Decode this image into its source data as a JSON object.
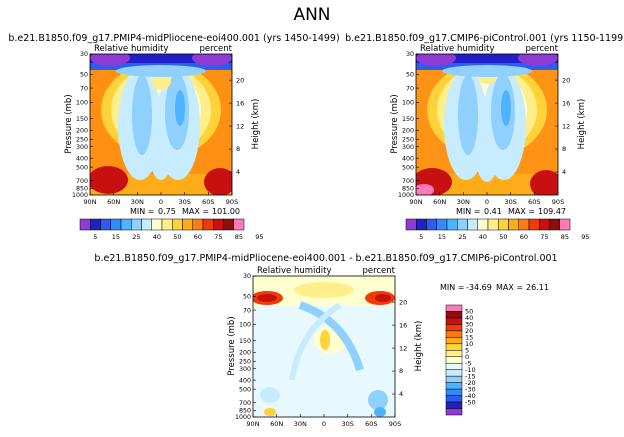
{
  "page_title": "ANN",
  "colors": {
    "pos_scale": [
      "#8d3bd4",
      "#2020c8",
      "#2c5cf0",
      "#2f8cff",
      "#4fb3ff",
      "#8fd0ff",
      "#c8ecff",
      "#ffffd0",
      "#ffef8a",
      "#ffd23a",
      "#ffac1a",
      "#ff7a10",
      "#f03a08",
      "#c81010",
      "#8a1010",
      "#ff7ab8"
    ],
    "diff_scale": [
      "#8d3bd4",
      "#2020c8",
      "#2c5cf0",
      "#2f8cff",
      "#4fb3ff",
      "#8fd0ff",
      "#c8ecff",
      "#e8f8ff",
      "#ffffd0",
      "#ffef8a",
      "#ffd23a",
      "#ffac1a",
      "#ff7a10",
      "#f03a08",
      "#c81010",
      "#8a1010",
      "#ff7ab8"
    ]
  },
  "chart_data": [
    {
      "type": "heatmap",
      "title": "b.e21.B1850.f09_g17.PMIP4-midPliocene-eoi400.001 (yrs 1450-1499)",
      "left_label": "Relative humidity",
      "right_label": "percent",
      "ylabel": "Pressure (mb)",
      "y2label": "Height (km)",
      "xticks": [
        "90N",
        "60N",
        "30N",
        "0",
        "30S",
        "60S",
        "90S"
      ],
      "yticks": [
        "1000",
        "850",
        "700",
        "500",
        "400",
        "300",
        "250",
        "200",
        "150",
        "100",
        "70",
        "50",
        "30"
      ],
      "y2ticks": [
        "4",
        "8",
        "12",
        "16",
        "20"
      ],
      "stats": {
        "min_label": "MIN =",
        "min": "0.75",
        "max_label": "MAX =",
        "max": "101.00"
      },
      "levels": [
        "5",
        "15",
        "25",
        "40",
        "50",
        "60",
        "75",
        "85",
        "95"
      ]
    },
    {
      "type": "heatmap",
      "title": "b.e21.B1850.f09_g17.CMIP6-piControl.001 (yrs 1150-1199)",
      "left_label": "Relative humidity",
      "right_label": "percent",
      "ylabel": "Pressure (mb)",
      "y2label": "Height (km)",
      "xticks": [
        "90N",
        "60N",
        "30N",
        "0",
        "30S",
        "60S",
        "90S"
      ],
      "yticks": [
        "1000",
        "850",
        "700",
        "500",
        "400",
        "300",
        "250",
        "200",
        "150",
        "100",
        "70",
        "50",
        "30"
      ],
      "y2ticks": [
        "4",
        "8",
        "12",
        "16",
        "20"
      ],
      "stats": {
        "min_label": "MIN =",
        "min": "0.41",
        "max_label": "MAX =",
        "max": "109.47"
      },
      "levels": [
        "5",
        "15",
        "25",
        "40",
        "50",
        "60",
        "75",
        "85",
        "95"
      ]
    },
    {
      "type": "heatmap",
      "title": "b.e21.B1850.f09_g17.PMIP4-midPliocene-eoi400.001 - b.e21.B1850.f09_g17.CMIP6-piControl.001",
      "left_label": "Relative humidity",
      "right_label": "percent",
      "ylabel": "Pressure (mb)",
      "y2label": "Height (km)",
      "xticks": [
        "90N",
        "60N",
        "30N",
        "0",
        "30S",
        "60S",
        "90S"
      ],
      "yticks": [
        "1000",
        "850",
        "700",
        "500",
        "400",
        "300",
        "250",
        "200",
        "150",
        "100",
        "70",
        "50",
        "30"
      ],
      "y2ticks": [
        "4",
        "8",
        "12",
        "16",
        "20"
      ],
      "stats": {
        "min_label": "MIN =",
        "min": "-34.69",
        "max_label": "MAX =",
        "max": "26.11"
      },
      "levels": [
        "50",
        "40",
        "30",
        "20",
        "15",
        "10",
        "5",
        "0",
        "-5",
        "-10",
        "-15",
        "-20",
        "-30",
        "-40",
        "-50"
      ]
    }
  ]
}
